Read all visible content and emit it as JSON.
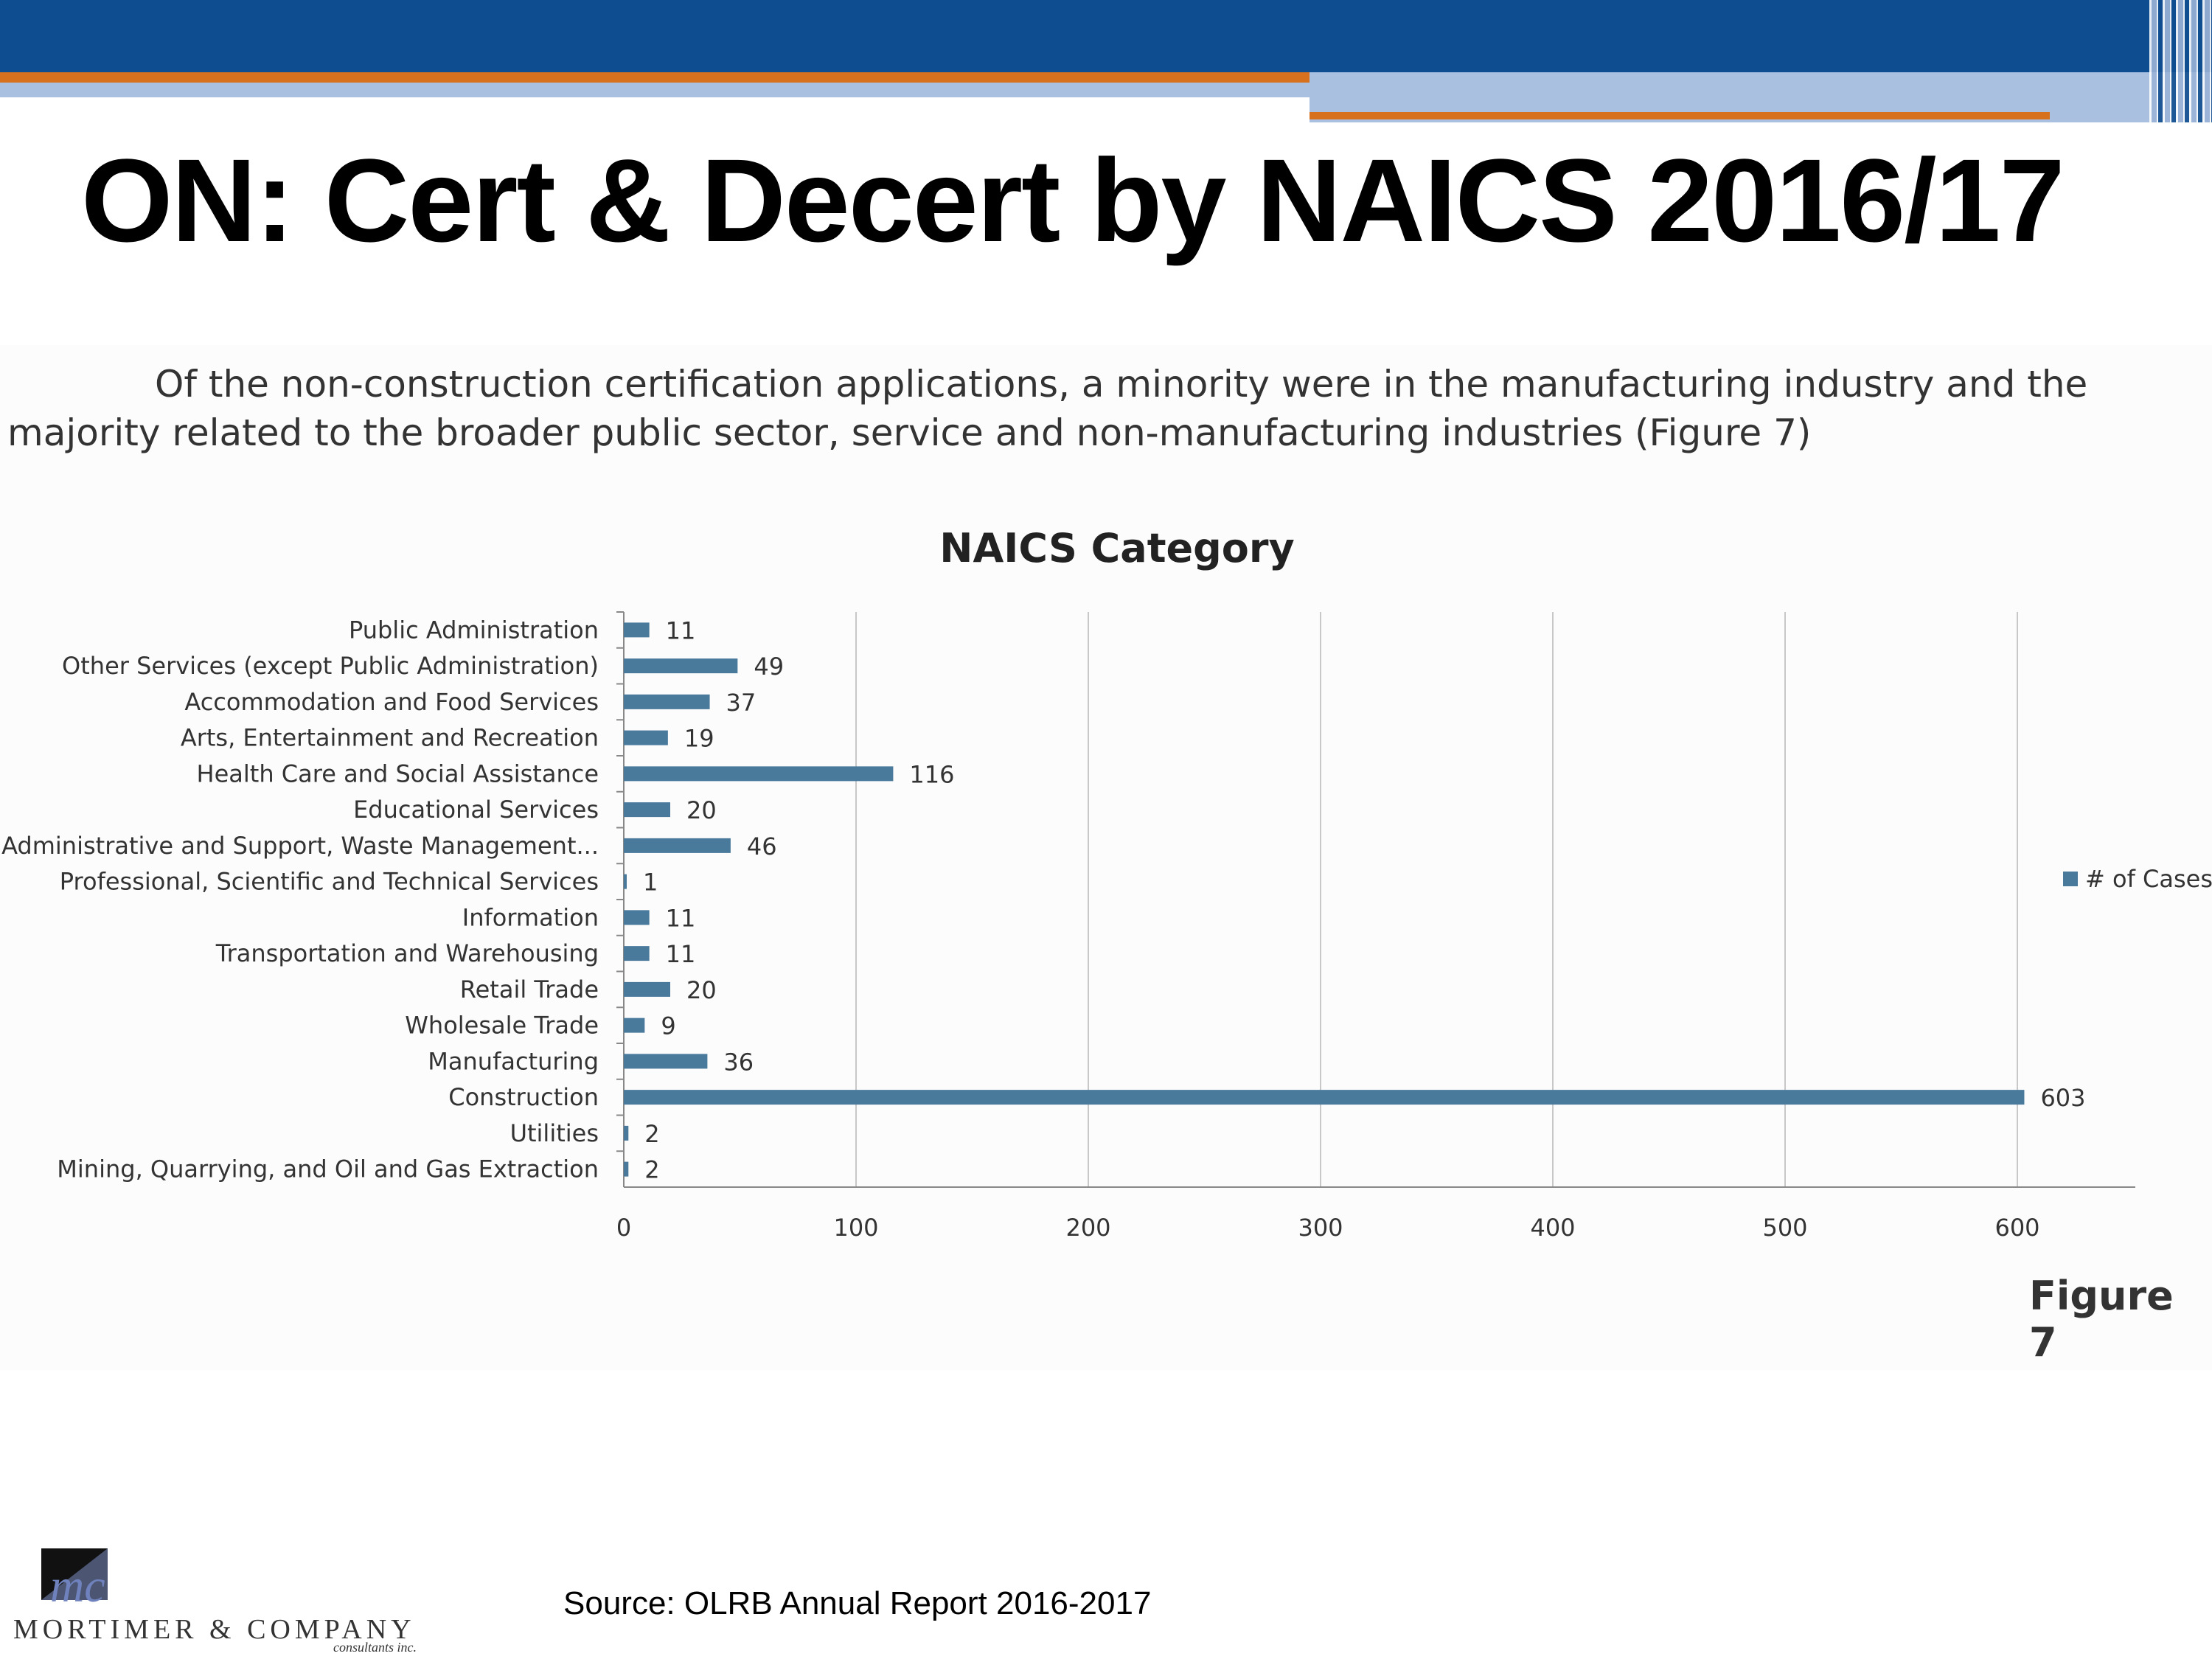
{
  "slide": {
    "title": "ON: Cert & Decert by NAICS 2016/17",
    "paragraph": "Of the non-construction certification applications, a minority were in the manufacturing industry and the majority related to the broader public sector, service and non-manufacturing industries (Figure 7)",
    "figure_label": "Figure 7",
    "source": "Source: OLRB Annual Report 2016-2017",
    "logo": {
      "monogram": "mc",
      "name": "MORTIMER & COMPANY",
      "tagline": "consultants inc."
    }
  },
  "colors": {
    "bar": "#4a7a9b",
    "header": "#0e4d8f",
    "accent": "#d8711d",
    "grid": "#c8c8c8"
  },
  "chart_data": {
    "type": "bar",
    "orientation": "horizontal",
    "title": "NAICS Category",
    "categories": [
      "Public Administration",
      "Other Services (except Public Administration)",
      "Accommodation and Food Services",
      "Arts, Entertainment and Recreation",
      "Health Care and Social Assistance",
      "Educational Services",
      "Administrative and Support, Waste Management...",
      "Professional, Scientific and Technical Services",
      "Information",
      "Transportation and Warehousing",
      "Retail Trade",
      "Wholesale Trade",
      "Manufacturing",
      "Construction",
      "Utilities",
      "Mining, Quarrying, and Oil and Gas Extraction"
    ],
    "series": [
      {
        "name": "# of Cases",
        "values": [
          11,
          49,
          37,
          19,
          116,
          20,
          46,
          1,
          11,
          11,
          20,
          9,
          36,
          603,
          2,
          2
        ]
      }
    ],
    "xlim": [
      0,
      650
    ],
    "xticks": [
      0,
      100,
      200,
      300,
      400,
      500,
      600
    ],
    "grid": true,
    "legend": "right",
    "data_labels": true
  }
}
